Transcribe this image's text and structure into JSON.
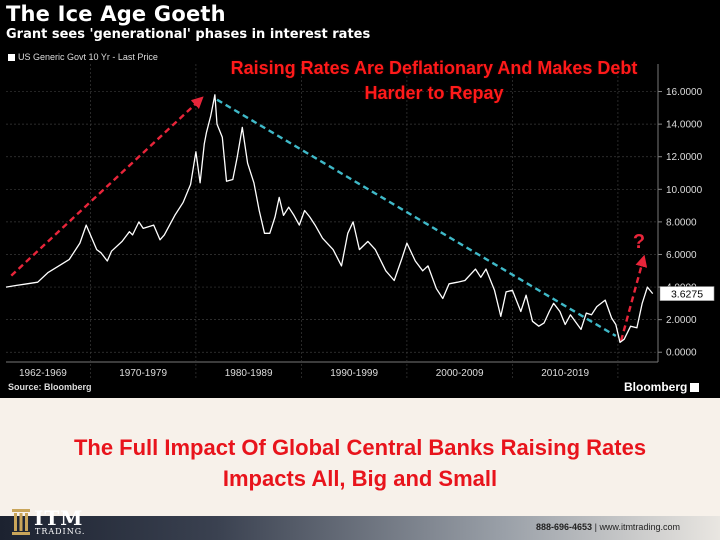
{
  "chart_data": {
    "type": "line",
    "title": "The Ice Age Goeth",
    "subtitle": "Grant sees 'generational' phases in interest rates",
    "series": [
      {
        "name": "US Generic Govt 10 Yr - Last Price",
        "color": "#ffffff",
        "points": [
          [
            1962.0,
            4.0
          ],
          [
            1963.0,
            4.1
          ],
          [
            1964.0,
            4.2
          ],
          [
            1965.0,
            4.3
          ],
          [
            1966.0,
            4.9
          ],
          [
            1967.0,
            5.3
          ],
          [
            1968.0,
            5.7
          ],
          [
            1969.0,
            6.7
          ],
          [
            1969.6,
            7.8
          ],
          [
            1970.0,
            7.2
          ],
          [
            1970.6,
            6.3
          ],
          [
            1971.0,
            6.1
          ],
          [
            1971.6,
            5.6
          ],
          [
            1972.0,
            6.2
          ],
          [
            1973.0,
            6.8
          ],
          [
            1973.7,
            7.4
          ],
          [
            1974.0,
            7.2
          ],
          [
            1974.6,
            8.0
          ],
          [
            1975.0,
            7.6
          ],
          [
            1976.0,
            7.8
          ],
          [
            1976.6,
            6.9
          ],
          [
            1977.0,
            7.2
          ],
          [
            1978.0,
            8.4
          ],
          [
            1978.8,
            9.2
          ],
          [
            1979.5,
            10.3
          ],
          [
            1980.0,
            12.3
          ],
          [
            1980.4,
            10.4
          ],
          [
            1980.8,
            12.8
          ],
          [
            1981.0,
            13.5
          ],
          [
            1981.4,
            14.5
          ],
          [
            1981.8,
            15.8
          ],
          [
            1982.0,
            14.0
          ],
          [
            1982.5,
            13.2
          ],
          [
            1982.9,
            10.5
          ],
          [
            1983.5,
            10.6
          ],
          [
            1983.9,
            11.9
          ],
          [
            1984.4,
            13.8
          ],
          [
            1984.9,
            11.6
          ],
          [
            1985.5,
            10.4
          ],
          [
            1986.0,
            8.7
          ],
          [
            1986.5,
            7.3
          ],
          [
            1987.0,
            7.3
          ],
          [
            1987.5,
            8.3
          ],
          [
            1987.9,
            9.5
          ],
          [
            1988.3,
            8.4
          ],
          [
            1988.8,
            8.9
          ],
          [
            1989.3,
            8.4
          ],
          [
            1989.8,
            7.8
          ],
          [
            1990.3,
            8.7
          ],
          [
            1990.8,
            8.3
          ],
          [
            1991.3,
            7.8
          ],
          [
            1992.0,
            7.0
          ],
          [
            1993.0,
            6.3
          ],
          [
            1993.8,
            5.3
          ],
          [
            1994.4,
            7.3
          ],
          [
            1994.9,
            8.0
          ],
          [
            1995.5,
            6.3
          ],
          [
            1996.3,
            6.8
          ],
          [
            1997.0,
            6.3
          ],
          [
            1998.0,
            5.0
          ],
          [
            1998.8,
            4.4
          ],
          [
            1999.5,
            5.7
          ],
          [
            2000.0,
            6.7
          ],
          [
            2000.8,
            5.6
          ],
          [
            2001.5,
            5.0
          ],
          [
            2002.0,
            5.3
          ],
          [
            2002.8,
            3.9
          ],
          [
            2003.4,
            3.3
          ],
          [
            2004.0,
            4.2
          ],
          [
            2004.8,
            4.3
          ],
          [
            2005.5,
            4.4
          ],
          [
            2006.5,
            5.1
          ],
          [
            2007.0,
            4.6
          ],
          [
            2007.5,
            5.1
          ],
          [
            2008.3,
            3.8
          ],
          [
            2008.9,
            2.2
          ],
          [
            2009.4,
            3.7
          ],
          [
            2010.0,
            3.8
          ],
          [
            2010.8,
            2.5
          ],
          [
            2011.3,
            3.5
          ],
          [
            2011.9,
            1.9
          ],
          [
            2012.5,
            1.6
          ],
          [
            2013.0,
            1.8
          ],
          [
            2013.5,
            2.5
          ],
          [
            2013.9,
            3.0
          ],
          [
            2014.5,
            2.5
          ],
          [
            2015.0,
            1.7
          ],
          [
            2015.5,
            2.3
          ],
          [
            2016.5,
            1.4
          ],
          [
            2017.0,
            2.4
          ],
          [
            2017.5,
            2.3
          ],
          [
            2018.0,
            2.8
          ],
          [
            2018.8,
            3.2
          ],
          [
            2019.4,
            2.1
          ],
          [
            2019.8,
            1.7
          ],
          [
            2020.2,
            0.6
          ],
          [
            2020.6,
            0.8
          ],
          [
            2021.2,
            1.6
          ],
          [
            2021.8,
            1.5
          ],
          [
            2022.3,
            3.0
          ],
          [
            2022.8,
            4.0
          ],
          [
            2023.3,
            3.6
          ]
        ]
      }
    ],
    "last_value_label": "3.6275",
    "x_tick_labels": [
      "1962-1969",
      "1970-1979",
      "1980-1989",
      "1990-1999",
      "2000-2009",
      "2010-2019"
    ],
    "x_ticks": [
      1965.5,
      1975.0,
      1985.0,
      1995.0,
      2005.0,
      2015.0
    ],
    "x_range": [
      1962.0,
      2023.8
    ],
    "y_ticks": [
      0,
      2,
      4,
      6,
      8,
      10,
      12,
      14,
      16
    ],
    "y_tick_labels": [
      "0.0000",
      "2.0000",
      "4.0000",
      "6.0000",
      "8.0000",
      "10.0000",
      "12.0000",
      "14.0000",
      "16.0000"
    ],
    "ylim": [
      -0.6,
      17.2
    ],
    "grid": true,
    "annotations": [
      {
        "kind": "dashed-arrow",
        "color": "#e8253a",
        "from": [
          1962.5,
          4.7
        ],
        "to": [
          1980.4,
          15.5
        ]
      },
      {
        "kind": "dashed-line",
        "color": "#3fb9c8",
        "from": [
          1982.0,
          15.5
        ],
        "to": [
          2019.8,
          1.0
        ]
      },
      {
        "kind": "dashed-arrow",
        "color": "#e8253a",
        "from": [
          2020.3,
          0.7
        ],
        "to": [
          2022.4,
          5.7
        ]
      },
      {
        "kind": "label",
        "color": "#e8253a",
        "text": "?",
        "at": [
          2022.0,
          6.4
        ]
      }
    ],
    "source": "Source: Bloomberg",
    "brand": "Bloomberg"
  },
  "overlay_text": "Raising Rates Are Deflationary And Makes Debt Harder to Repay",
  "headline_line1": "The Full Impact Of Global Central Banks Raising Rates",
  "headline_line2": "Impacts All, Big and Small",
  "footer": {
    "logo_text": "ITM",
    "logo_sub": "TRADING.",
    "phone": "888-696-4653",
    "separator": "|",
    "website": "www.itmtrading.com"
  },
  "colors": {
    "accent_red": "#e8141c",
    "chart_bg": "#000000",
    "page_bg": "#f7f1ea"
  }
}
